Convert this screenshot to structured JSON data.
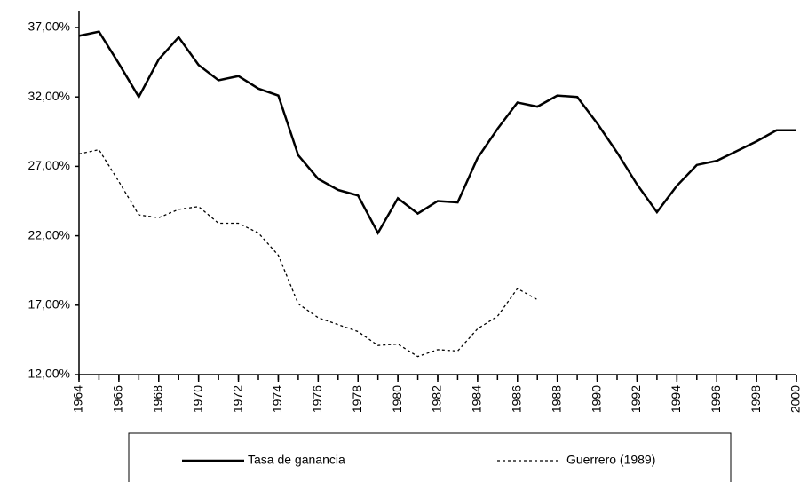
{
  "chart_data": {
    "type": "line",
    "x": [
      1964,
      1965,
      1966,
      1967,
      1968,
      1969,
      1970,
      1971,
      1972,
      1973,
      1974,
      1975,
      1976,
      1977,
      1978,
      1979,
      1980,
      1981,
      1982,
      1983,
      1984,
      1985,
      1986,
      1987,
      1988,
      1989,
      1990,
      1991,
      1992,
      1993,
      1994,
      1995,
      1996,
      1997,
      1998,
      1999,
      2000
    ],
    "series": [
      {
        "name": "Tasa de ganancia",
        "color": "#000000",
        "dash": "solid",
        "values": [
          36.4,
          36.7,
          34.4,
          32.0,
          34.7,
          36.3,
          34.3,
          33.2,
          33.5,
          32.6,
          32.1,
          27.8,
          26.1,
          25.3,
          24.9,
          22.2,
          24.7,
          23.6,
          24.5,
          24.4,
          27.6,
          29.7,
          31.6,
          31.3,
          32.1,
          32.0,
          30.1,
          28.0,
          25.7,
          23.7,
          25.6,
          27.1,
          27.4,
          28.1,
          28.8,
          29.6,
          29.6
        ]
      },
      {
        "name": "Guerrero (1989)",
        "color": "#000000",
        "dash": "dotted",
        "values": [
          27.9,
          28.2,
          25.9,
          23.5,
          23.3,
          23.9,
          24.1,
          22.9,
          22.9,
          22.2,
          20.6,
          17.1,
          16.1,
          15.6,
          15.1,
          14.1,
          14.2,
          13.3,
          13.8,
          13.7,
          15.3,
          16.2,
          18.2,
          17.4,
          null,
          null,
          null,
          null,
          null,
          null,
          null,
          null,
          null,
          null,
          null,
          null,
          null
        ]
      }
    ],
    "xlim": [
      1964,
      2000
    ],
    "xticks": [
      1964,
      1966,
      1968,
      1970,
      1972,
      1974,
      1976,
      1978,
      1980,
      1982,
      1984,
      1986,
      1988,
      1990,
      1992,
      1994,
      1996,
      1998,
      2000
    ],
    "ylim": [
      12,
      37
    ],
    "yticks": [
      {
        "value": 12,
        "label": "12,00%"
      },
      {
        "value": 17,
        "label": "17,00%"
      },
      {
        "value": 22,
        "label": "22,00%"
      },
      {
        "value": 27,
        "label": "27,00%"
      },
      {
        "value": 32,
        "label": "32,00%"
      },
      {
        "value": 37,
        "label": "37,00%"
      }
    ],
    "grid": false
  }
}
